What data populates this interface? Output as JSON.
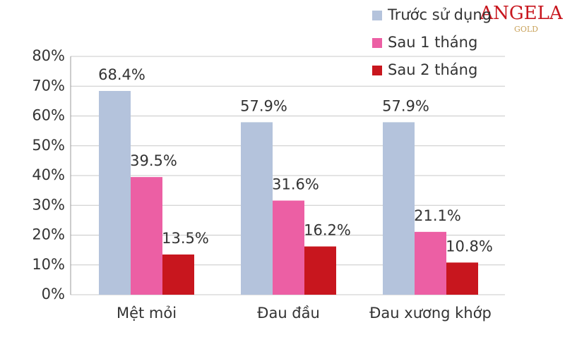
{
  "chart_data": {
    "type": "bar",
    "categories": [
      "Mệt mỏi",
      "Đau đầu",
      "Đau xương khớp"
    ],
    "series": [
      {
        "name": "Trước sử dụng",
        "color": "#b4c3dc",
        "values": [
          68.4,
          57.9,
          57.9
        ],
        "value_labels": [
          "68.4%",
          "57.9%",
          "57.9%"
        ]
      },
      {
        "name": "Sau 1 tháng",
        "color": "#ec5fa4",
        "values": [
          39.5,
          31.6,
          21.1
        ],
        "value_labels": [
          "39.5%",
          "31.6%",
          "21.1%"
        ]
      },
      {
        "name": "Sau 2 tháng",
        "color": "#c8161e",
        "values": [
          13.5,
          16.2,
          10.8
        ],
        "value_labels": [
          "13.5%",
          "16.2%",
          "10.8%"
        ]
      }
    ],
    "ylim": [
      0,
      80
    ],
    "yticks": [
      {
        "value": 0,
        "label": "0%"
      },
      {
        "value": 10,
        "label": "10%"
      },
      {
        "value": 20,
        "label": "20%"
      },
      {
        "value": 30,
        "label": "30%"
      },
      {
        "value": 40,
        "label": "40%"
      },
      {
        "value": 50,
        "label": "50%"
      },
      {
        "value": 60,
        "label": "60%"
      },
      {
        "value": 70,
        "label": "70%"
      },
      {
        "value": 80,
        "label": "80%"
      }
    ],
    "grid": true,
    "legend": "top-right"
  },
  "logo": {
    "brand": "ANGELA",
    "sub": "GOLD"
  }
}
